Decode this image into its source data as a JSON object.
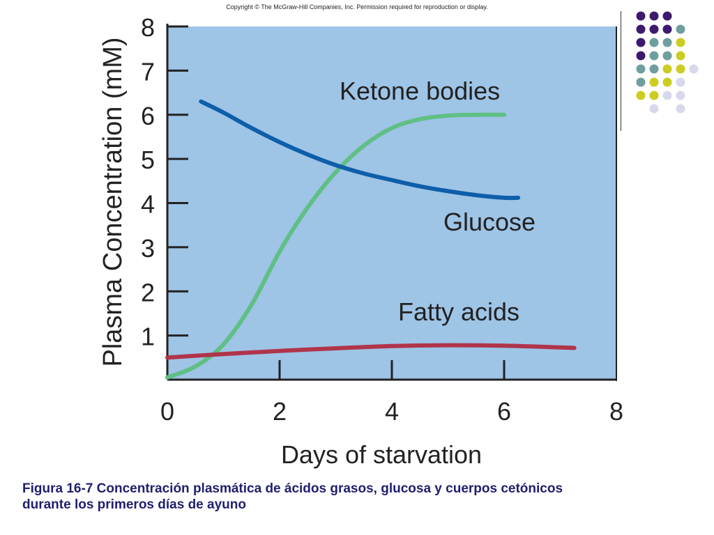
{
  "copyright": "Copyright © The McGraw-Hill Companies, Inc. Permission required for reproduction or display.",
  "caption": {
    "line1": "Figura 16-7 Concentración plasmática de ácidos grasos, glucosa y cuerpos cetónicos",
    "line2": "durante los primeros días de ayuno"
  },
  "colors": {
    "plot_background": "#9ec4e6",
    "ketone": "#5fbf84",
    "glucose": "#0e5ea9",
    "fatty": "#b0344a",
    "purple": "#3d1a6e",
    "teal": "#6f9e9e",
    "yellow": "#cccc22",
    "lavender": "#d8d8ec"
  },
  "dot_grid_colors": [
    [
      "purple",
      "purple",
      "purple",
      null
    ],
    [
      "purple",
      "purple",
      "purple",
      "teal"
    ],
    [
      "purple",
      "teal",
      "teal",
      "yellow"
    ],
    [
      "purple",
      "teal",
      "teal",
      "yellow",
      null
    ],
    [
      "teal",
      "teal",
      "yellow",
      "yellow",
      "lavender"
    ],
    [
      "teal",
      "yellow",
      "yellow",
      "lavender"
    ],
    [
      "yellow",
      "yellow",
      "lavender",
      "lavender"
    ],
    [
      null,
      "lavender",
      null,
      "lavender"
    ]
  ],
  "chart_data": {
    "type": "line",
    "xlabel": "Days of starvation",
    "ylabel": "Plasma Concentration (mM)",
    "xlim": [
      0,
      8
    ],
    "ylim": [
      0,
      8
    ],
    "xticks": [
      "0",
      "2",
      "4",
      "6",
      "8"
    ],
    "yticks": [
      "1",
      "2",
      "3",
      "4",
      "5",
      "6",
      "7",
      "8"
    ],
    "series": [
      {
        "name": "Ketone bodies",
        "color": "#5fbf84",
        "x": [
          0,
          0.5,
          1,
          1.5,
          2,
          2.5,
          3,
          3.5,
          4,
          4.5,
          5,
          5.5,
          6
        ],
        "y": [
          0.05,
          0.3,
          0.8,
          1.7,
          2.9,
          3.9,
          4.7,
          5.3,
          5.7,
          5.9,
          5.98,
          6.0,
          6.0
        ]
      },
      {
        "name": "Glucose",
        "color": "#0e5ea9",
        "x": [
          0.6,
          1,
          1.5,
          2,
          2.5,
          3,
          3.5,
          4,
          4.5,
          5,
          5.5,
          6,
          6.25
        ],
        "y": [
          6.3,
          6.05,
          5.7,
          5.38,
          5.1,
          4.86,
          4.67,
          4.52,
          4.38,
          4.27,
          4.18,
          4.12,
          4.12
        ]
      },
      {
        "name": "Fatty acids",
        "color": "#b0344a",
        "x": [
          0,
          1,
          2,
          3,
          4,
          5,
          6,
          7,
          7.25
        ],
        "y": [
          0.5,
          0.58,
          0.65,
          0.71,
          0.76,
          0.78,
          0.77,
          0.73,
          0.72
        ]
      }
    ]
  }
}
